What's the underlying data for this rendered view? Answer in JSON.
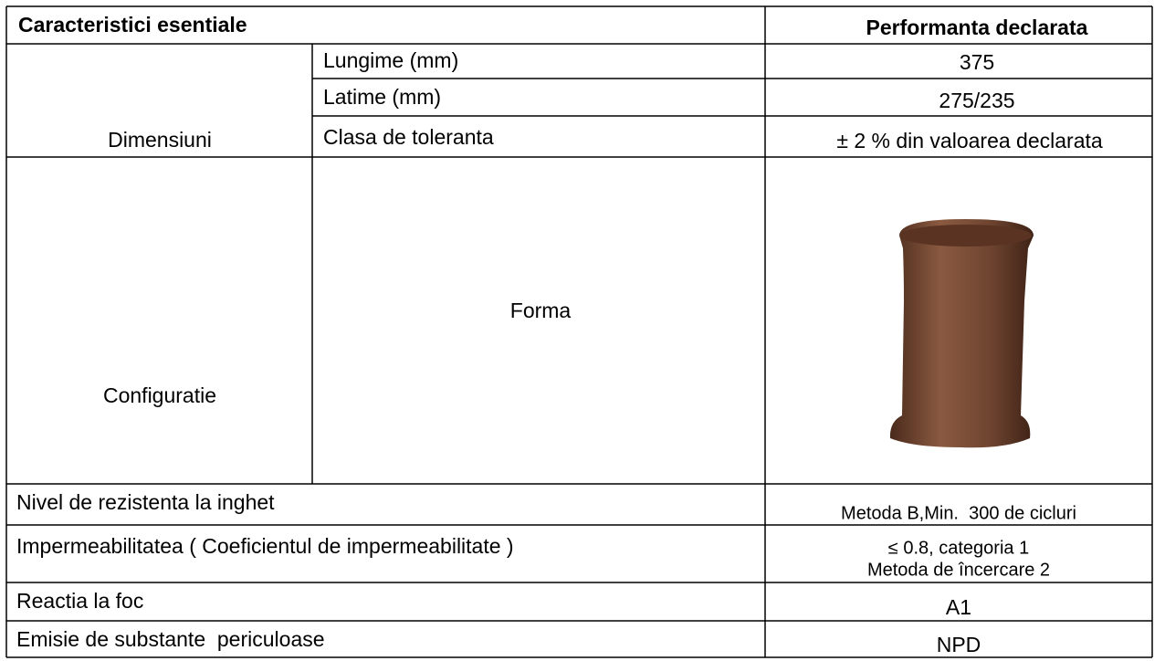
{
  "header": {
    "left": "Caracteristici esentiale",
    "right": "Performanta declarata"
  },
  "table": {
    "groups": [
      {
        "label": "Dimensiuni",
        "rows": [
          {
            "name": "Lungime (mm)",
            "value": "375"
          },
          {
            "name": "Latime (mm)",
            "value": "275/235"
          },
          {
            "name": "Clasa de toleranta",
            "value": "± 2 % din valoarea declarata"
          }
        ]
      },
      {
        "label": "Configuratie",
        "rows": [
          {
            "name": "Forma"
          }
        ]
      }
    ],
    "rows": [
      {
        "name": "Nivel de rezistenta la inghet",
        "value": [
          "Metoda B,Min.  300 de cicluri"
        ]
      },
      {
        "name": "Impermeabilitatea ( Coeficientul de impermeabilitate )",
        "value": [
          "≤ 0.8, categoria 1",
          "Metoda de încercare 2"
        ]
      },
      {
        "name": "Reactia la foc",
        "value": [
          "A1"
        ]
      },
      {
        "name": "Emisie de substante  periculoase",
        "value": [
          "NPD"
        ]
      }
    ]
  }
}
